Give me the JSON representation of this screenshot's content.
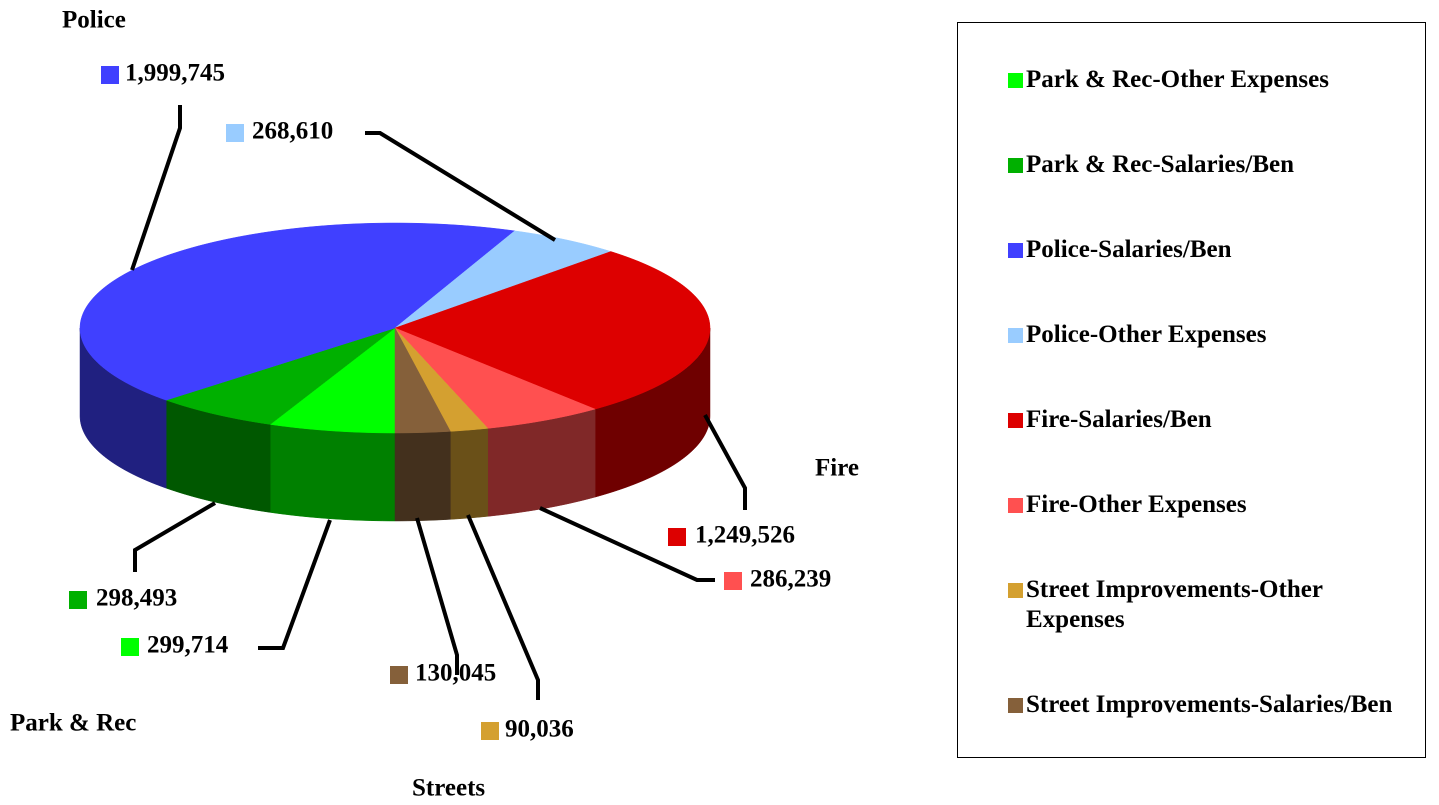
{
  "chart_data": {
    "type": "pie",
    "categories": [
      "Park & Rec-Other Expenses",
      "Park & Rec-Salaries/Ben",
      "Police-Salaries/Ben",
      "Police-Other Expenses",
      "Fire-Salaries/Ben",
      "Fire-Other Expenses",
      "Street Improvements-Other Expenses",
      "Street Improvements-Salaries/Ben"
    ],
    "values": [
      299714,
      298493,
      1999745,
      268610,
      1249526,
      286239,
      90036,
      130045
    ],
    "value_labels": [
      "299,714",
      "298,493",
      "1,999,745",
      "268,610",
      "1,249,526",
      "286,239",
      "90,036",
      "130,045"
    ],
    "colors": [
      "#00ff00",
      "#00b000",
      "#4040ff",
      "#99ccff",
      "#dd0000",
      "#ff5050",
      "#d4a030",
      "#85603a"
    ],
    "annotations": [
      "Police",
      "Fire",
      "Streets",
      "Park & Rec"
    ],
    "legend": "right"
  }
}
